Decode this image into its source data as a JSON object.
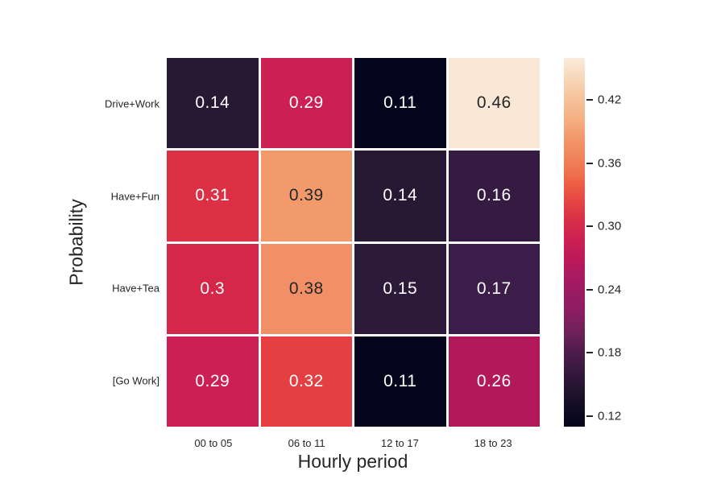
{
  "colors": {
    "background": "#ffffff",
    "text": "#262626",
    "annot_light": "#ffffff",
    "annot_dark": "#262626",
    "grid_gap": "#ffffff",
    "tick_dash": "#262626"
  },
  "chart_data": {
    "type": "heatmap",
    "title": "",
    "xlabel": "Hourly period",
    "ylabel": "Probability",
    "rows": [
      "Drive+Work",
      "Have+Fun",
      "Have+Tea",
      "[Go Work]"
    ],
    "columns": [
      "00 to 05",
      "06 to 11",
      "12 to 17",
      "18 to 23"
    ],
    "values": [
      [
        0.14,
        0.29,
        0.11,
        0.46
      ],
      [
        0.31,
        0.39,
        0.14,
        0.16
      ],
      [
        0.3,
        0.38,
        0.15,
        0.17
      ],
      [
        0.29,
        0.32,
        0.11,
        0.26
      ]
    ],
    "cell_labels": [
      [
        "0.14",
        "0.29",
        "0.11",
        "0.46"
      ],
      [
        "0.31",
        "0.39",
        "0.14",
        "0.16"
      ],
      [
        "0.3",
        "0.38",
        "0.15",
        "0.17"
      ],
      [
        "0.29",
        "0.32",
        "0.11",
        "0.26"
      ]
    ],
    "cell_colors": [
      [
        "#271834",
        "#CC2054",
        "#04051C",
        "#FAE8D6"
      ],
      [
        "#DC3144",
        "#F39A6C",
        "#271834",
        "#351A42"
      ],
      [
        "#D52749",
        "#F19066",
        "#2D1A3B",
        "#3C1C48"
      ],
      [
        "#CC2054",
        "#E63F42",
        "#04051C",
        "#B1195B"
      ]
    ],
    "colormap": "rocket",
    "grid_on": false,
    "legend_position": "colorbar-right",
    "colorbar": {
      "vmin": 0.11,
      "vmax": 0.46,
      "ticks": [
        "0.42",
        "0.36",
        "0.30",
        "0.24",
        "0.18",
        "0.12"
      ],
      "tick_values": [
        0.42,
        0.36,
        0.3,
        0.24,
        0.18,
        0.12
      ],
      "gradient_stops": [
        {
          "pos": 0.0,
          "color": "#04051A"
        },
        {
          "pos": 0.055,
          "color": "#130D23"
        },
        {
          "pos": 0.104,
          "color": "#241430"
        },
        {
          "pos": 0.153,
          "color": "#371940"
        },
        {
          "pos": 0.202,
          "color": "#4D1C4B"
        },
        {
          "pos": 0.251,
          "color": "#6B2158"
        },
        {
          "pos": 0.317,
          "color": "#8E1D64"
        },
        {
          "pos": 0.352,
          "color": "#951C63"
        },
        {
          "pos": 0.404,
          "color": "#A81A61"
        },
        {
          "pos": 0.456,
          "color": "#BC1A59"
        },
        {
          "pos": 0.509,
          "color": "#CD2052"
        },
        {
          "pos": 0.561,
          "color": "#D92F48"
        },
        {
          "pos": 0.614,
          "color": "#E54744"
        },
        {
          "pos": 0.666,
          "color": "#EE6246"
        },
        {
          "pos": 0.683,
          "color": "#EE6F4C"
        },
        {
          "pos": 0.735,
          "color": "#F0855B"
        },
        {
          "pos": 0.788,
          "color": "#F29A6C"
        },
        {
          "pos": 0.84,
          "color": "#F4B285"
        },
        {
          "pos": 0.893,
          "color": "#F5C49D"
        },
        {
          "pos": 0.945,
          "color": "#F6D7B8"
        },
        {
          "pos": 1.0,
          "color": "#FAEBDD"
        }
      ]
    }
  }
}
